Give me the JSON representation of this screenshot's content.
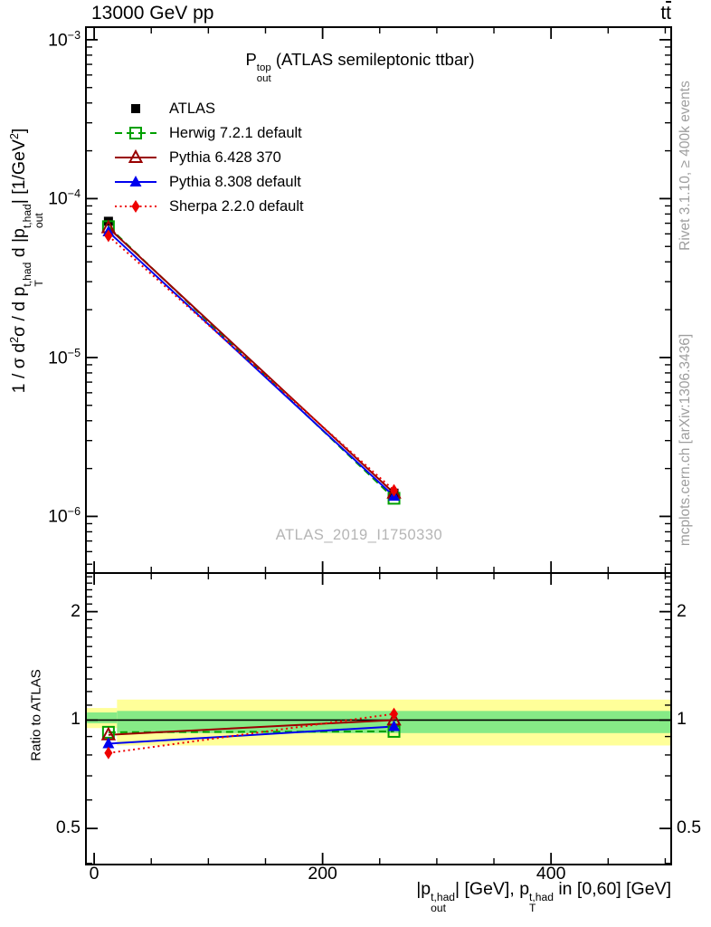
{
  "header": {
    "left": "13000 GeV pp",
    "right_t": "t",
    "right_tbar": "t"
  },
  "right_margin": {
    "top": "Rivet 3.1.10, ≥ 400k events",
    "bottom": "mcplots.cern.ch [arXiv:1306.3436]"
  },
  "watermark": "ATLAS_2019_I1750330",
  "chart_data": {
    "type": "line",
    "title_parts": [
      {
        "text": "P"
      },
      {
        "sup": "top",
        "sub": "out"
      },
      {
        "text": " (ATLAS semileptonic ttbar)"
      }
    ],
    "xlabel_parts": [
      {
        "text": "|p"
      },
      {
        "sup": "t,had",
        "sub": "out"
      },
      {
        "text": "| [GeV], p"
      },
      {
        "sup": "t,had",
        "sub": "T"
      },
      {
        "text": " in [0,60] [GeV]"
      }
    ],
    "x_points": [
      12.5,
      262.5
    ],
    "xlim": [
      -7.2,
      505.2
    ],
    "xticks": {
      "values": [
        0,
        200,
        400
      ],
      "labels": [
        "0",
        "200",
        "400"
      ],
      "minor": [
        50,
        100,
        150,
        250,
        300,
        350,
        450,
        500
      ]
    },
    "main_panel": {
      "yscale": "log",
      "ylim": [
        4.4e-07,
        0.0012
      ],
      "ylabel_parts": [
        {
          "text": "1 / σ d"
        },
        {
          "sup": "2"
        },
        {
          "text": "σ / d p"
        },
        {
          "sup": "t,had",
          "sub": "T"
        },
        {
          "text": " d |p"
        },
        {
          "sup": "t,had",
          "sub": "out"
        },
        {
          "text": "| [1/GeV"
        },
        {
          "sup": "2"
        },
        {
          "text": "]"
        }
      ],
      "yticks": [
        {
          "value": 0.001,
          "parts": [
            {
              "text": "10"
            },
            {
              "sup": "−3"
            }
          ]
        },
        {
          "value": 0.0001,
          "parts": [
            {
              "text": "10"
            },
            {
              "sup": "−4"
            }
          ]
        },
        {
          "value": 1e-05,
          "parts": [
            {
              "text": "10"
            },
            {
              "sup": "−5"
            }
          ]
        },
        {
          "value": 1e-06,
          "parts": [
            {
              "text": "10"
            },
            {
              "sup": "−6"
            }
          ]
        }
      ],
      "series": [
        {
          "name": "ATLAS",
          "color": "#000000",
          "marker": "square-filled",
          "line": "none",
          "values": [
            7.2e-05,
            1.4e-06
          ]
        },
        {
          "name": "Herwig 7.2.1 default",
          "color": "#00a000",
          "marker": "square-open",
          "line": "dashed",
          "values": [
            6.66e-05,
            1.3e-06
          ]
        },
        {
          "name": "Pythia 6.428 370",
          "color": "#990000",
          "marker": "triangle-open",
          "line": "solid",
          "values": [
            6.55e-05,
            1.4e-06
          ]
        },
        {
          "name": "Pythia 8.308 default",
          "color": "#0000ee",
          "marker": "triangle-filled",
          "line": "solid",
          "values": [
            6.19e-05,
            1.34e-06
          ]
        },
        {
          "name": "Sherpa 2.2.0 default",
          "color": "#ee0000",
          "marker": "diamond-filled",
          "line": "dotted",
          "values": [
            5.83e-05,
            1.46e-06
          ]
        }
      ]
    },
    "ratio_panel": {
      "ylabel": "Ratio to ATLAS",
      "yscale": "log",
      "ylim": [
        0.397,
        2.56
      ],
      "reference_line": 1,
      "yticks": [
        {
          "value": 2,
          "label": "2"
        },
        {
          "value": 1,
          "label": "1"
        },
        {
          "value": 0.5,
          "label": "0.5"
        }
      ],
      "yminor": [
        0.4,
        0.6,
        0.7,
        0.8,
        0.9,
        1.1,
        1.2,
        1.3,
        1.4,
        1.5,
        1.6,
        1.7,
        1.8,
        1.9,
        2.1,
        2.2,
        2.3,
        2.4,
        2.5
      ],
      "band_colors": {
        "yellow": "#ffff99",
        "green": "#86ea86"
      },
      "bands": [
        {
          "x": [
            -7.2,
            20
          ],
          "yellow": [
            0.95,
            1.08
          ],
          "green": [
            0.98,
            1.05
          ]
        },
        {
          "x": [
            20,
            505.2
          ],
          "yellow": [
            0.85,
            1.14
          ],
          "green": [
            0.92,
            1.06
          ]
        }
      ],
      "series": [
        {
          "name": "Herwig 7.2.1 default",
          "values": [
            0.925,
            0.93
          ]
        },
        {
          "name": "Pythia 6.428 370",
          "values": [
            0.91,
            1.0
          ]
        },
        {
          "name": "Pythia 8.308 default",
          "values": [
            0.86,
            0.96
          ]
        },
        {
          "name": "Sherpa 2.2.0 default",
          "values": [
            0.81,
            1.04
          ]
        }
      ]
    }
  }
}
